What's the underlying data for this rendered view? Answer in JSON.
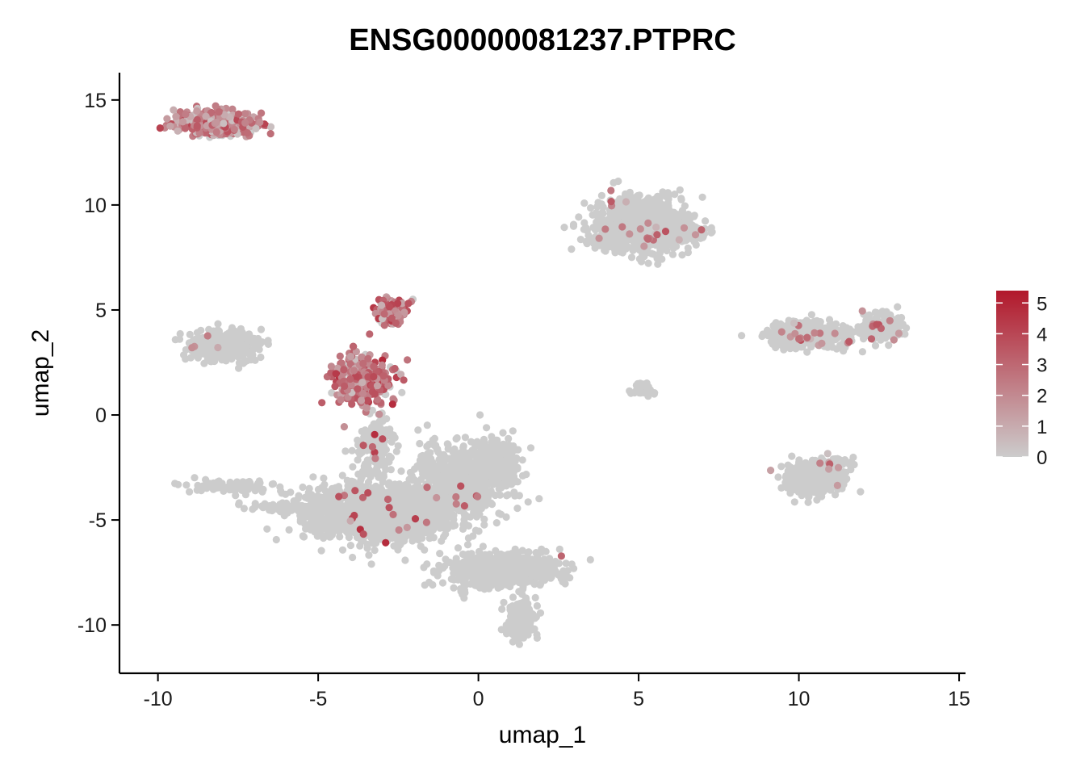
{
  "chart_data": {
    "type": "scatter",
    "title": "ENSG00000081237.PTPRC",
    "xlabel": "umap_1",
    "ylabel": "umap_2",
    "xlim": [
      -11.2,
      15.2
    ],
    "ylim": [
      -12.3,
      16.3
    ],
    "x_ticks": [
      -10,
      -5,
      0,
      5,
      10,
      15
    ],
    "y_ticks": [
      -10,
      -5,
      0,
      5,
      10,
      15
    ],
    "x_tick_labels": [
      "-10",
      "-5",
      "0",
      "5",
      "10",
      "15"
    ],
    "y_tick_labels": [
      "-10",
      "-5",
      "0",
      "5",
      "10",
      "15"
    ],
    "grid": false,
    "legend": {
      "placement": "right",
      "min": 0,
      "max": 5.4,
      "ticks": [
        0,
        1,
        2,
        3,
        4,
        5
      ],
      "tick_labels": [
        "0",
        "1",
        "2",
        "3",
        "4",
        "5"
      ],
      "low_color": "#CCCCCC",
      "high_color": "#B2182B"
    },
    "clusters": [
      {
        "cx": -8.2,
        "cy": 13.9,
        "rx": 1.1,
        "ry": 0.55,
        "n": 420,
        "expr_frac": 0.85,
        "expr_mean": 2.2
      },
      {
        "cx": -8.0,
        "cy": 3.3,
        "rx": 1.0,
        "ry": 0.65,
        "n": 380,
        "expr_frac": 0.01,
        "expr_mean": 1.0
      },
      {
        "cx": -2.75,
        "cy": 4.9,
        "rx": 0.45,
        "ry": 0.65,
        "n": 150,
        "expr_frac": 0.85,
        "expr_mean": 2.6
      },
      {
        "cx": -3.6,
        "cy": 1.7,
        "rx": 0.8,
        "ry": 1.1,
        "n": 330,
        "expr_frac": 0.8,
        "expr_mean": 2.6
      },
      {
        "cx": -3.2,
        "cy": -1.6,
        "rx": 0.5,
        "ry": 1.2,
        "n": 150,
        "expr_frac": 0.03,
        "expr_mean": 3.0
      },
      {
        "cx": -3.2,
        "cy": -4.7,
        "rx": 2.1,
        "ry": 1.2,
        "n": 1300,
        "expr_frac": 0.015,
        "expr_mean": 3.2
      },
      {
        "cx": -0.6,
        "cy": -3.2,
        "rx": 1.3,
        "ry": 1.6,
        "n": 700,
        "expr_frac": 0.01,
        "expr_mean": 2.5
      },
      {
        "cx": 0.6,
        "cy": -2.2,
        "rx": 0.6,
        "ry": 1.0,
        "n": 260,
        "expr_frac": 0.005,
        "expr_mean": 2.0
      },
      {
        "cx": 0.7,
        "cy": -7.4,
        "rx": 1.6,
        "ry": 0.75,
        "n": 700,
        "expr_frac": 0.005,
        "expr_mean": 2.5
      },
      {
        "cx": 1.3,
        "cy": -9.7,
        "rx": 0.4,
        "ry": 0.9,
        "n": 160,
        "expr_frac": 0.0,
        "expr_mean": 1.0
      },
      {
        "cx": -7.6,
        "cy": -3.4,
        "rx": 1.3,
        "ry": 0.3,
        "n": 80,
        "expr_frac": 0.0,
        "expr_mean": 1.0
      },
      {
        "cx": -6.0,
        "cy": -4.4,
        "rx": 1.5,
        "ry": 0.2,
        "n": 60,
        "expr_frac": 0.0,
        "expr_mean": 1.0
      },
      {
        "cx": 5.0,
        "cy": 9.0,
        "rx": 1.3,
        "ry": 1.2,
        "n": 950,
        "expr_frac": 0.015,
        "expr_mean": 2.0
      },
      {
        "cx": 6.3,
        "cy": 8.7,
        "rx": 0.8,
        "ry": 0.4,
        "n": 160,
        "expr_frac": 0.03,
        "expr_mean": 2.0
      },
      {
        "cx": 5.1,
        "cy": 1.2,
        "rx": 0.35,
        "ry": 0.3,
        "n": 40,
        "expr_frac": 0.0,
        "expr_mean": 1.0
      },
      {
        "cx": 10.3,
        "cy": 3.8,
        "rx": 1.1,
        "ry": 0.55,
        "n": 360,
        "expr_frac": 0.04,
        "expr_mean": 2.2
      },
      {
        "cx": 12.6,
        "cy": 4.2,
        "rx": 0.6,
        "ry": 0.6,
        "n": 200,
        "expr_frac": 0.05,
        "expr_mean": 2.4
      },
      {
        "cx": 10.4,
        "cy": -3.0,
        "rx": 0.9,
        "ry": 0.8,
        "n": 260,
        "expr_frac": 0.04,
        "expr_mean": 1.5
      },
      {
        "cx": 11.0,
        "cy": -2.3,
        "rx": 0.5,
        "ry": 0.3,
        "n": 40,
        "expr_frac": 0.1,
        "expr_mean": 1.5
      }
    ]
  }
}
